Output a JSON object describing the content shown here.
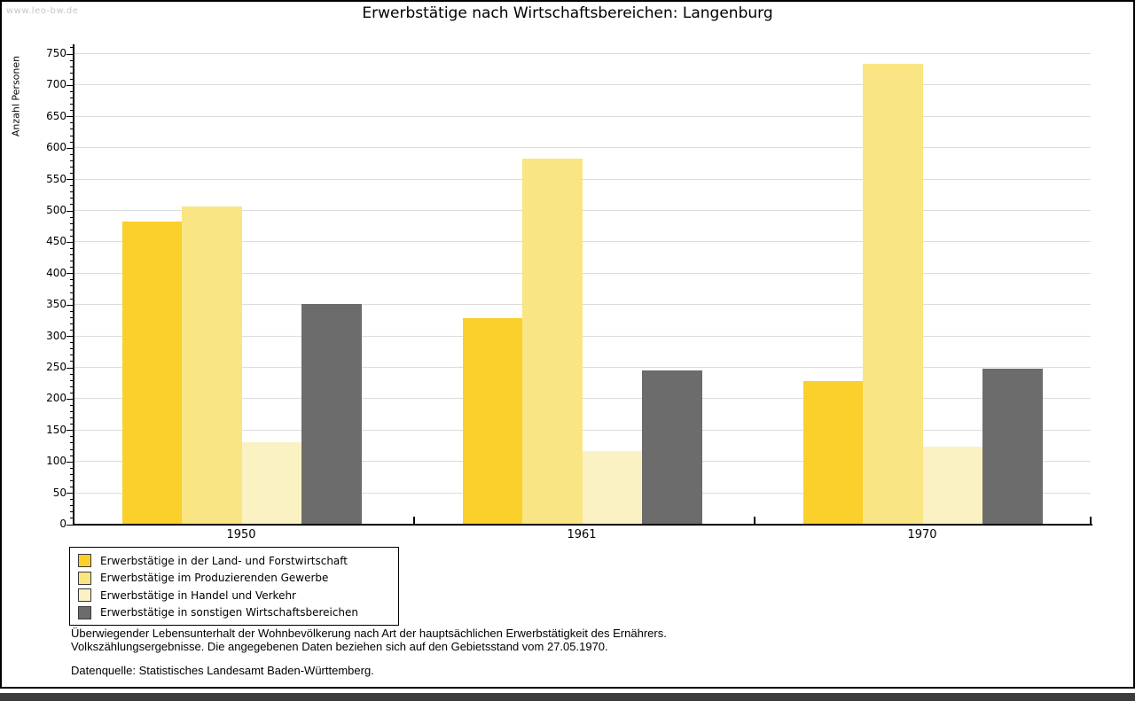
{
  "watermark": "www.leo-bw.de",
  "title": "Erwerbstätige nach Wirtschaftsbereichen: Langenburg",
  "chart_data": {
    "type": "bar",
    "title": "Erwerbstätige nach Wirtschaftsbereichen: Langenburg",
    "xlabel": "",
    "ylabel": "Anzahl Personen",
    "ylim": [
      0,
      750
    ],
    "yticks": [
      0,
      50,
      100,
      150,
      200,
      250,
      300,
      350,
      400,
      450,
      500,
      550,
      600,
      650,
      700,
      750
    ],
    "minor_tick_step": 10,
    "grid": true,
    "legend_position": "bottom-left",
    "categories": [
      "1950",
      "1961",
      "1970"
    ],
    "series": [
      {
        "name": "Erwerbstätige in der Land- und Forstwirtschaft",
        "color": "#fbd02c",
        "values": [
          483,
          329,
          228
        ]
      },
      {
        "name": "Erwerbstätige im Produzierenden Gewerbe",
        "color": "#fae584",
        "values": [
          507,
          583,
          734
        ]
      },
      {
        "name": "Erwerbstätige in Handel und Verkehr",
        "color": "#faf2c3",
        "values": [
          131,
          116,
          124
        ]
      },
      {
        "name": "Erwerbstätige in sonstigen Wirtschaftsbereichen",
        "color": "#6c6c6c",
        "values": [
          351,
          245,
          248
        ]
      }
    ]
  },
  "colors": {
    "gridline": "#dcdcdc",
    "axis": "#000000",
    "watermark": "#c6c6c6",
    "bottom_bar": "#3c3c3c"
  },
  "footer": {
    "line1": "Überwiegender Lebensunterhalt der Wohnbevölkerung nach Art der hauptsächlichen Erwerbstätigkeit des Ernährers.",
    "line2": "Volkszählungsergebnisse. Die angegebenen Daten beziehen sich auf den Gebietsstand vom 27.05.1970.",
    "source": "Datenquelle: Statistisches Landesamt Baden-Württemberg."
  }
}
